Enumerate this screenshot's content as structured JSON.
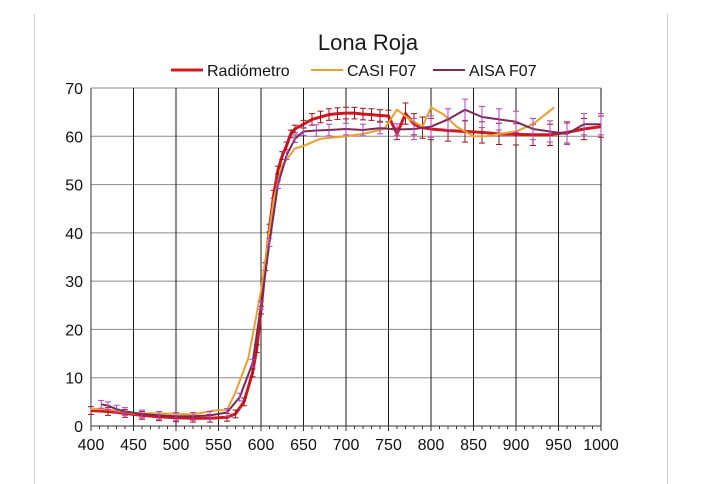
{
  "chart_data": {
    "type": "line",
    "title": "Lona Roja",
    "xlabel": "",
    "ylabel": "",
    "xlim": [
      400,
      1000
    ],
    "ylim": [
      0,
      70
    ],
    "x_ticks": [
      400,
      450,
      500,
      550,
      600,
      650,
      700,
      750,
      800,
      850,
      900,
      950,
      1000
    ],
    "y_ticks": [
      0,
      10,
      20,
      30,
      40,
      50,
      60,
      70
    ],
    "grid": {
      "vertical": true,
      "horizontal": true
    },
    "legend_position": "top",
    "series": [
      {
        "name": "Radiómetro",
        "color": "#d01820",
        "error_bars": true,
        "x": [
          400,
          420,
          440,
          460,
          480,
          500,
          520,
          540,
          560,
          570,
          580,
          590,
          595,
          600,
          605,
          610,
          615,
          620,
          625,
          630,
          635,
          640,
          650,
          660,
          670,
          680,
          690,
          700,
          710,
          720,
          730,
          740,
          750,
          760,
          770,
          780,
          790,
          800,
          820,
          840,
          860,
          880,
          900,
          920,
          940,
          960,
          980,
          1000
        ],
        "y": [
          3.2,
          3.0,
          2.6,
          2.2,
          1.9,
          1.7,
          1.6,
          1.6,
          1.8,
          2.5,
          5,
          11,
          16,
          24,
          33,
          41,
          48,
          53,
          56,
          58,
          60.5,
          61.5,
          62.5,
          63.5,
          64,
          64.5,
          64.7,
          64.8,
          64.8,
          64.6,
          64.5,
          64.3,
          64.2,
          60.5,
          64.7,
          62.5,
          61.8,
          61.5,
          61.2,
          61,
          60.8,
          60.5,
          60.4,
          60.3,
          60.3,
          60.8,
          61.5,
          62
        ]
      },
      {
        "name": "CASI F07",
        "color": "#e8a030",
        "error_bars": false,
        "x": [
          400,
          415,
          430,
          450,
          480,
          500,
          520,
          545,
          560,
          570,
          585,
          600,
          615,
          625,
          640,
          650,
          670,
          700,
          720,
          745,
          760,
          775,
          790,
          800,
          815,
          830,
          850,
          865,
          880,
          900,
          920,
          945
        ],
        "y": [
          3.5,
          3.5,
          3.2,
          2.6,
          2.6,
          2.5,
          2.4,
          3.2,
          3.3,
          7,
          14,
          28,
          47,
          54,
          57.5,
          58,
          59.5,
          60,
          60.5,
          61.5,
          65.5,
          63.5,
          62,
          66,
          64.5,
          62,
          60,
          60,
          60.5,
          61,
          62.5,
          66
        ]
      },
      {
        "name": "AISA F07",
        "color": "#7a2a58",
        "error_bars": true,
        "x": [
          412,
          420,
          430,
          440,
          460,
          480,
          500,
          520,
          540,
          560,
          575,
          590,
          600,
          610,
          620,
          630,
          640,
          650,
          665,
          680,
          700,
          720,
          740,
          760,
          780,
          800,
          820,
          840,
          860,
          880,
          900,
          920,
          940,
          960,
          980,
          1000
        ],
        "y": [
          4.5,
          4.2,
          3.5,
          3.0,
          2.5,
          2.2,
          2.0,
          2.0,
          2.2,
          2.8,
          6,
          13,
          25,
          38,
          50,
          56,
          59.5,
          61,
          61.2,
          61.3,
          61.5,
          61.3,
          61.7,
          61.4,
          61.5,
          62,
          63.5,
          65.5,
          64,
          63.5,
          63,
          61.5,
          61,
          60.5,
          62.5,
          62.5
        ]
      }
    ]
  }
}
